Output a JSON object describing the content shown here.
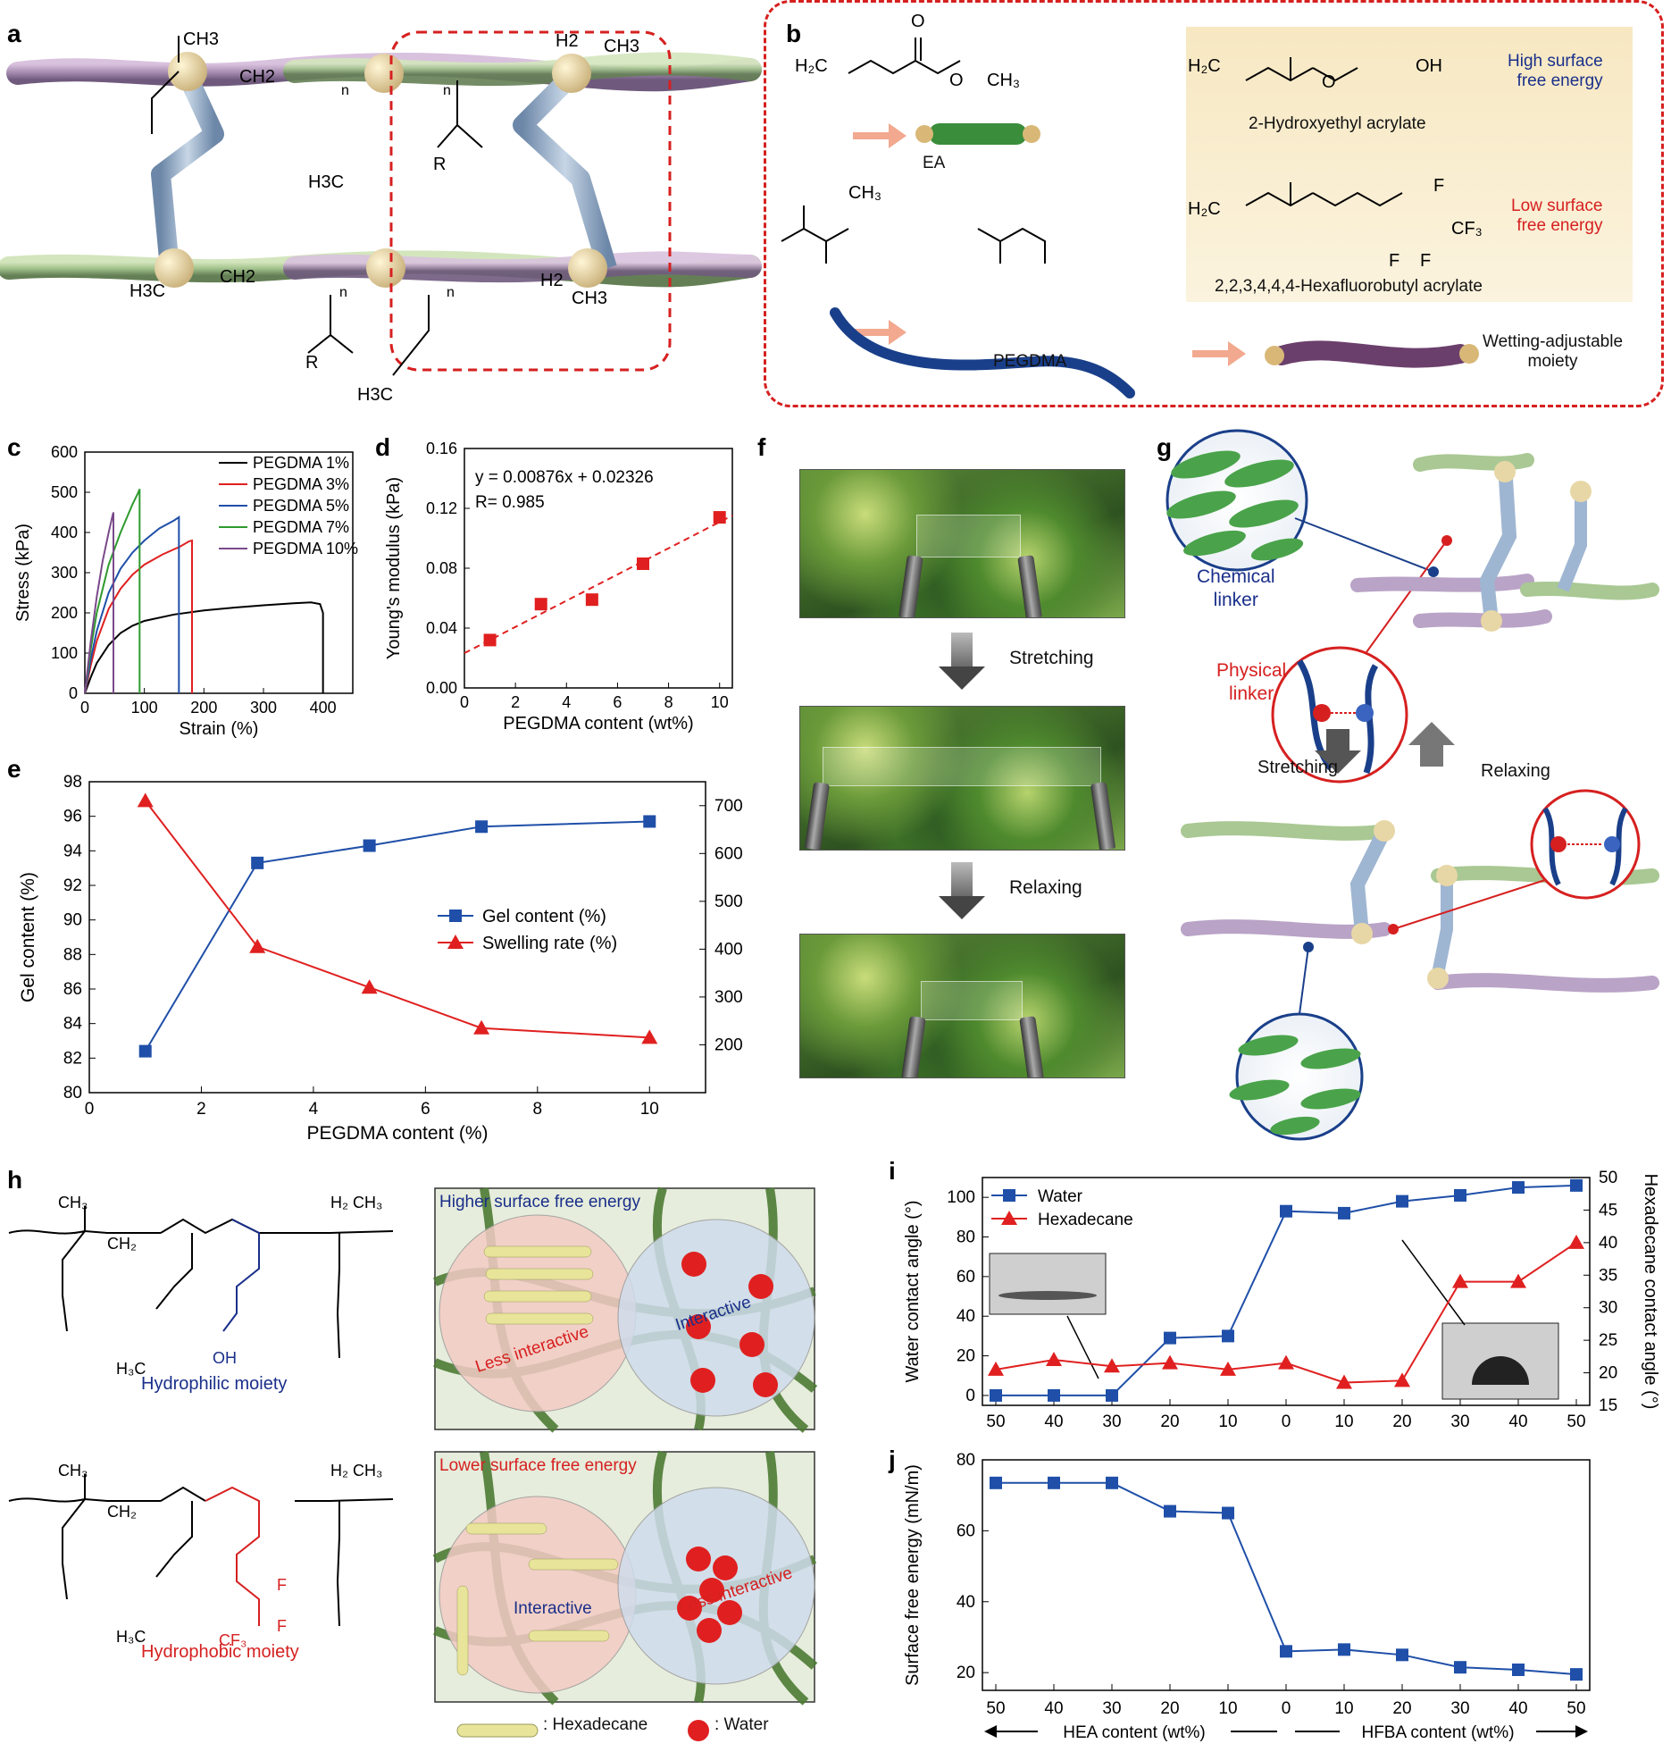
{
  "panels": {
    "a": "a",
    "b": "b",
    "c": "c",
    "d": "d",
    "e": "e",
    "f": "f",
    "g": "g",
    "h": "h",
    "i": "i",
    "j": "j"
  },
  "panel_a": {
    "labels": [
      "CH3",
      "CH2",
      "n",
      "n",
      "H2",
      "CH3",
      "R",
      "H3C",
      "H3C",
      "CH2",
      "n",
      "n",
      "H2",
      "CH3",
      "R",
      "H3C"
    ]
  },
  "panel_b": {
    "ea_label": "EA",
    "pegdma_label": "PEGDMA",
    "hea_name": "2-Hydroxyethyl acrylate",
    "hfba_name": "2,2,3,4,4,4-Hexafluorobutyl acrylate",
    "high_energy": [
      "High surface",
      "free energy"
    ],
    "low_energy": [
      "Low surface",
      "free energy"
    ],
    "moiety_label": [
      "Wetting-adjustable",
      "moiety"
    ]
  },
  "panel_f": {
    "stretching": "Stretching",
    "relaxing": "Relaxing"
  },
  "panel_g": {
    "chemical_linker": [
      "Chemical",
      "linker"
    ],
    "physical_linker": [
      "Physical",
      "linker"
    ],
    "stretching": "Stretching",
    "relaxing": "Relaxing"
  },
  "panel_h": {
    "hydrophilic": "Hydrophilic moiety",
    "hydrophobic": "Hydrophobic moiety",
    "higher_sfe": "Higher surface free energy",
    "lower_sfe": "Lower surface free energy",
    "less_interactive": "Less interactive",
    "interactive": "Interactive",
    "legend_hexadecane": ": Hexadecane",
    "legend_water": ": Water"
  },
  "chart_data": [
    {
      "id": "c",
      "type": "line",
      "xlabel": "Strain (%)",
      "ylabel": "Stress (kPa)",
      "xlim": [
        0,
        450
      ],
      "ylim": [
        0,
        600
      ],
      "xticks": [
        "0",
        "100",
        "200",
        "300",
        "400"
      ],
      "yticks": [
        "0",
        "100",
        "200",
        "300",
        "400",
        "500",
        "600"
      ],
      "legend_position": "top-right",
      "series": [
        {
          "name": "PEGDMA 1%",
          "color": "#000000",
          "x": [
            0,
            10,
            20,
            40,
            60,
            80,
            100,
            150,
            200,
            250,
            300,
            350,
            380,
            395,
            400,
            400
          ],
          "y": [
            0,
            40,
            75,
            120,
            150,
            168,
            180,
            196,
            206,
            213,
            219,
            224,
            226,
            222,
            200,
            0
          ]
        },
        {
          "name": "PEGDMA 3%",
          "color": "#e02020",
          "x": [
            0,
            10,
            20,
            40,
            60,
            80,
            100,
            130,
            160,
            175,
            180,
            180
          ],
          "y": [
            0,
            70,
            130,
            210,
            260,
            295,
            320,
            345,
            365,
            378,
            380,
            0
          ]
        },
        {
          "name": "PEGDMA 5%",
          "color": "#1f4fa8",
          "x": [
            0,
            10,
            20,
            40,
            60,
            80,
            100,
            125,
            150,
            158,
            158
          ],
          "y": [
            0,
            85,
            155,
            250,
            310,
            350,
            380,
            410,
            430,
            438,
            0
          ]
        },
        {
          "name": "PEGDMA 7%",
          "color": "#2e9a2e",
          "x": [
            0,
            10,
            20,
            40,
            60,
            80,
            90,
            92,
            92
          ],
          "y": [
            0,
            110,
            200,
            320,
            400,
            470,
            500,
            508,
            0
          ]
        },
        {
          "name": "PEGDMA 10%",
          "color": "#7a4a8a",
          "x": [
            0,
            10,
            20,
            30,
            40,
            47,
            48,
            48
          ],
          "y": [
            0,
            130,
            240,
            330,
            400,
            445,
            450,
            0
          ]
        }
      ]
    },
    {
      "id": "d",
      "type": "scatter",
      "xlabel": "PEGDMA content (wt%)",
      "ylabel": "Young's modulus (kPa)",
      "xlim": [
        0,
        10.5
      ],
      "ylim": [
        0,
        0.16
      ],
      "xticks": [
        "0",
        "2",
        "4",
        "6",
        "8",
        "10"
      ],
      "yticks": [
        "0.00",
        "0.04",
        "0.08",
        "0.12",
        "0.16"
      ],
      "annotation": [
        "y = 0.00876x + 0.02326",
        "R= 0.985"
      ],
      "fit": {
        "slope": 0.00876,
        "intercept": 0.02326
      },
      "series": [
        {
          "name": "",
          "color": "#e02020",
          "x": [
            1,
            3,
            5,
            7,
            10
          ],
          "y": [
            0.032,
            0.056,
            0.059,
            0.083,
            0.114
          ]
        }
      ]
    },
    {
      "id": "e",
      "type": "line",
      "xlabel": "PEGDMA content (%)",
      "ylabel": "Gel content (%)",
      "y2label": "Swelling rate (%)",
      "xlim": [
        0,
        11
      ],
      "ylim": [
        80,
        98
      ],
      "y2lim": [
        100,
        750
      ],
      "xticks": [
        "0",
        "2",
        "4",
        "6",
        "8",
        "10"
      ],
      "yticks": [
        "80",
        "82",
        "84",
        "86",
        "88",
        "90",
        "92",
        "94",
        "96",
        "98"
      ],
      "y2ticks": [
        "200",
        "300",
        "400",
        "500",
        "600",
        "700"
      ],
      "legend_position": "center-right",
      "series": [
        {
          "name": "Gel content (%)",
          "color": "#1f4fa8",
          "marker": "square",
          "axis": "left",
          "x": [
            1,
            3,
            5,
            7,
            10
          ],
          "y": [
            82.4,
            93.3,
            94.3,
            95.4,
            95.7
          ]
        },
        {
          "name": "Swelling rate (%)",
          "color": "#e02020",
          "marker": "triangle",
          "axis": "right",
          "x": [
            1,
            3,
            5,
            7,
            10
          ],
          "y": [
            710,
            405,
            320,
            235,
            215
          ]
        }
      ]
    },
    {
      "id": "i",
      "type": "line",
      "ylabel": "Water contact angle (°)",
      "y2label": "Hexadecane contact angle (°)",
      "ylim": [
        -5,
        110
      ],
      "y2lim": [
        15,
        50
      ],
      "categories": [
        "50",
        "40",
        "30",
        "20",
        "10",
        "0",
        "10",
        "20",
        "30",
        "40",
        "50"
      ],
      "yticks": [
        "0",
        "20",
        "40",
        "60",
        "80",
        "100"
      ],
      "y2ticks": [
        "15",
        "20",
        "25",
        "30",
        "35",
        "40",
        "45",
        "50"
      ],
      "legend_position": "top-left",
      "series": [
        {
          "name": "Water",
          "color": "#1f4fa8",
          "marker": "square",
          "axis": "left",
          "values": [
            0,
            0,
            0,
            29,
            30,
            93,
            92,
            98,
            101,
            105,
            106
          ]
        },
        {
          "name": "Hexadecane",
          "color": "#e02020",
          "marker": "triangle",
          "axis": "right",
          "values": [
            20.5,
            22,
            21,
            21.5,
            20.5,
            21.5,
            18.5,
            18.8,
            34,
            34,
            40
          ]
        }
      ]
    },
    {
      "id": "j",
      "type": "line",
      "ylabel": "Surface free energy (mN/m)",
      "categories": [
        "50",
        "40",
        "30",
        "20",
        "10",
        "0",
        "10",
        "20",
        "30",
        "40",
        "50"
      ],
      "ylim": [
        15,
        80
      ],
      "yticks": [
        "20",
        "40",
        "60",
        "80"
      ],
      "x_groups": [
        "HEA content (wt%)",
        "HFBA content (wt%)"
      ],
      "series": [
        {
          "name": "",
          "color": "#1f4fa8",
          "marker": "square",
          "values": [
            73.5,
            73.5,
            73.5,
            65.5,
            65,
            26,
            26.5,
            25,
            21.5,
            20.8,
            19.5
          ]
        }
      ]
    }
  ]
}
